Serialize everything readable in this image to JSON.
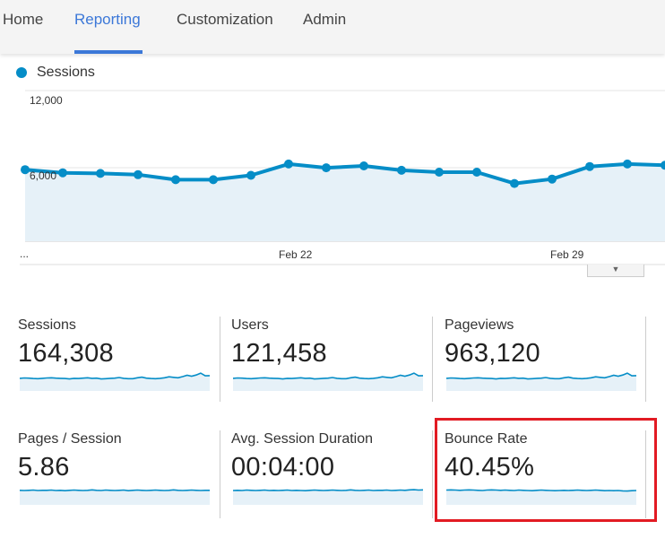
{
  "nav": {
    "tabs": [
      "Home",
      "Reporting",
      "Customization",
      "Admin"
    ],
    "active": "Reporting"
  },
  "legend": {
    "series": "Sessions",
    "color": "#058dc7"
  },
  "chart_data": {
    "type": "area",
    "series": [
      {
        "name": "Sessions",
        "values": [
          5700,
          5450,
          5400,
          5300,
          4900,
          4900,
          5250,
          6150,
          5850,
          6000,
          5650,
          5500,
          5500,
          4600,
          4950,
          5950,
          6150,
          6050
        ]
      }
    ],
    "y_ticks": [
      "12,000",
      "6,000"
    ],
    "ylim": [
      0,
      12000
    ],
    "x_ticks": [
      "Feb 22",
      "Feb 29"
    ],
    "x_start_label": "..."
  },
  "metrics": [
    {
      "label": "Sessions",
      "value": "164,308"
    },
    {
      "label": "Users",
      "value": "121,458"
    },
    {
      "label": "Pageviews",
      "value": "963,120"
    },
    {
      "label": "Pages / Session",
      "value": "5.86"
    },
    {
      "label": "Avg. Session Duration",
      "value": "00:04:00"
    },
    {
      "label": "Bounce Rate",
      "value": "40.45%"
    }
  ],
  "sparklines": [
    [
      6.5,
      6.7,
      6.6,
      6.4,
      6.3,
      6.5,
      6.7,
      6.8,
      6.6,
      6.5,
      6.4,
      6.2,
      6.5,
      6.4,
      6.6,
      6.8,
      6.5,
      6.6,
      6.2,
      6.3,
      6.5,
      6.6,
      6.9,
      6.5,
      6.3,
      6.3,
      6.8,
      7.1,
      6.6,
      6.4,
      6.3,
      6.5,
      6.8,
      7.3,
      7.0,
      6.8,
      7.4,
      8.1,
      7.6,
      8.2,
      9.2,
      7.8,
      7.9
    ],
    [
      6.5,
      6.7,
      6.6,
      6.4,
      6.3,
      6.5,
      6.7,
      6.8,
      6.6,
      6.5,
      6.4,
      6.2,
      6.5,
      6.4,
      6.6,
      6.8,
      6.5,
      6.6,
      6.2,
      6.3,
      6.5,
      6.6,
      6.9,
      6.5,
      6.3,
      6.3,
      6.8,
      7.1,
      6.6,
      6.4,
      6.3,
      6.5,
      6.8,
      7.3,
      7.0,
      6.8,
      7.4,
      8.1,
      7.6,
      8.2,
      9.2,
      7.8,
      7.9
    ],
    [
      6.5,
      6.7,
      6.6,
      6.4,
      6.3,
      6.5,
      6.7,
      6.8,
      6.6,
      6.5,
      6.4,
      6.2,
      6.5,
      6.4,
      6.6,
      6.8,
      6.5,
      6.6,
      6.2,
      6.3,
      6.5,
      6.6,
      6.9,
      6.5,
      6.3,
      6.3,
      6.8,
      7.1,
      6.6,
      6.4,
      6.3,
      6.5,
      6.8,
      7.3,
      7.0,
      6.8,
      7.4,
      8.1,
      7.6,
      8.2,
      9.2,
      7.8,
      7.9
    ],
    [
      7.5,
      7.4,
      7.5,
      7.6,
      7.4,
      7.5,
      7.5,
      7.6,
      7.4,
      7.5,
      7.3,
      7.5,
      7.6,
      7.5,
      7.4,
      7.5,
      7.7,
      7.5,
      7.4,
      7.6,
      7.5,
      7.4,
      7.5,
      7.6,
      7.3,
      7.5,
      7.6,
      7.5,
      7.4,
      7.5,
      7.6,
      7.5,
      7.4,
      7.5,
      7.7,
      7.5,
      7.4,
      7.5,
      7.6,
      7.5,
      7.4,
      7.5,
      7.5
    ],
    [
      7.4,
      7.5,
      7.4,
      7.6,
      7.5,
      7.4,
      7.5,
      7.6,
      7.4,
      7.5,
      7.4,
      7.5,
      7.6,
      7.4,
      7.5,
      7.4,
      7.3,
      7.5,
      7.6,
      7.5,
      7.4,
      7.5,
      7.6,
      7.5,
      7.4,
      7.5,
      7.7,
      7.5,
      7.4,
      7.5,
      7.6,
      7.4,
      7.5,
      7.5,
      7.6,
      7.4,
      7.5,
      7.6,
      7.5,
      7.7,
      7.8,
      7.6,
      7.7
    ],
    [
      7.6,
      7.7,
      7.6,
      7.5,
      7.6,
      7.7,
      7.6,
      7.5,
      7.4,
      7.6,
      7.7,
      7.6,
      7.5,
      7.6,
      7.5,
      7.4,
      7.6,
      7.5,
      7.4,
      7.3,
      7.5,
      7.6,
      7.5,
      7.4,
      7.3,
      7.4,
      7.5,
      7.4,
      7.5,
      7.6,
      7.5,
      7.4,
      7.5,
      7.6,
      7.5,
      7.3,
      7.4,
      7.3,
      7.4,
      7.2,
      7.1,
      7.3,
      7.4
    ]
  ]
}
